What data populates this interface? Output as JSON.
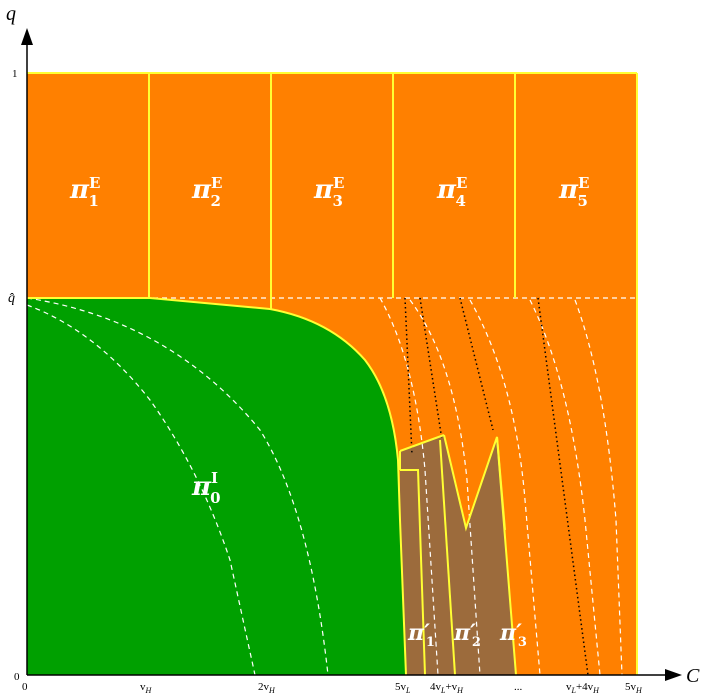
{
  "axes": {
    "x_name": "C",
    "y_name": "q",
    "x_ticks": {
      "zero": "0",
      "vH": "v",
      "vH_sub": "H",
      "two_vH": "2v",
      "two_vH_sub": "H",
      "five_vL": "5v",
      "five_vL_sub": "L",
      "fourvL_vH_a": "4v",
      "fourvL_vH_sub1": "L",
      "fourvL_vH_b": "+v",
      "fourvL_vH_sub2": "H",
      "dots": "...",
      "vL_4vH_a": "v",
      "vL_4vH_sub1": "L",
      "vL_4vH_b": "+4v",
      "vL_4vH_sub2": "H",
      "five_vH": "5v",
      "five_vH_sub": "H"
    },
    "y_ticks": {
      "zero": "0",
      "one": "1",
      "qhat": "q̂"
    }
  },
  "regions": {
    "E1": {
      "base": "π",
      "sub": "1",
      "sup": "E"
    },
    "E2": {
      "base": "π",
      "sub": "2",
      "sup": "E"
    },
    "E3": {
      "base": "π",
      "sub": "3",
      "sup": "E"
    },
    "E4": {
      "base": "π",
      "sub": "4",
      "sup": "E"
    },
    "E5": {
      "base": "π",
      "sub": "5",
      "sup": "E"
    },
    "I0": {
      "base": "π",
      "sub": "0",
      "sup": "I"
    },
    "P1": {
      "base": "π′",
      "sub": "1"
    },
    "P2": {
      "base": "π′",
      "sub": "2"
    },
    "P3": {
      "base": "π′",
      "sub": "3"
    }
  },
  "colors": {
    "orange": "#FF8000",
    "green": "#00A000",
    "brown": "#9C6B3C",
    "boundary": "#FFFF33",
    "dashed": "#FFFFFF",
    "dotted": "#000000",
    "axis": "#000000"
  }
}
